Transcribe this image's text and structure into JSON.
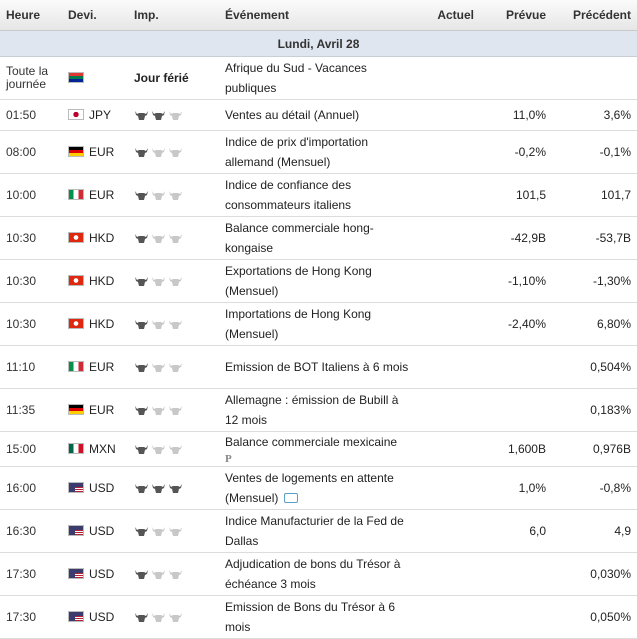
{
  "headers": {
    "time": "Heure",
    "currency": "Devi.",
    "impact": "Imp.",
    "event": "Événement",
    "actual": "Actuel",
    "forecast": "Prévue",
    "previous": "Précédent"
  },
  "day_label": "Lundi, Avril 28",
  "holiday": {
    "time": "Toute la journée",
    "currency_flag": "ZA",
    "impact_label": "Jour férié",
    "event": "Afrique du Sud - Vacances publiques"
  },
  "rows": [
    {
      "time": "01:50",
      "flag": "JP",
      "currency": "JPY",
      "impact": 2,
      "event": "Ventes au détail (Annuel)",
      "actual": "",
      "forecast": "11,0%",
      "previous": "3,6%"
    },
    {
      "time": "08:00",
      "flag": "DE",
      "currency": "EUR",
      "impact": 1,
      "event": "Indice de prix d'importation allemand (Mensuel)",
      "actual": "",
      "forecast": "-0,2%",
      "previous": "-0,1%"
    },
    {
      "time": "10:00",
      "flag": "IT",
      "currency": "EUR",
      "impact": 1,
      "event": "Indice de confiance des consommateurs italiens",
      "actual": "",
      "forecast": "101,5",
      "previous": "101,7"
    },
    {
      "time": "10:30",
      "flag": "HK",
      "currency": "HKD",
      "impact": 1,
      "event": "Balance commerciale hong-kongaise",
      "actual": "",
      "forecast": "-42,9B",
      "previous": "-53,7B"
    },
    {
      "time": "10:30",
      "flag": "HK",
      "currency": "HKD",
      "impact": 1,
      "event": "Exportations de Hong Kong (Mensuel)",
      "actual": "",
      "forecast": "-1,10%",
      "previous": "-1,30%"
    },
    {
      "time": "10:30",
      "flag": "HK",
      "currency": "HKD",
      "impact": 1,
      "event": "Importations de Hong Kong (Mensuel)",
      "actual": "",
      "forecast": "-2,40%",
      "previous": "6,80%"
    },
    {
      "time": "11:10",
      "flag": "IT",
      "currency": "EUR",
      "impact": 1,
      "event": "Emission de BOT Italiens à 6 mois",
      "actual": "",
      "forecast": "",
      "previous": "0,504%"
    },
    {
      "time": "11:35",
      "flag": "DE",
      "currency": "EUR",
      "impact": 1,
      "event": "Allemagne : émission de Bubill à 12 mois",
      "actual": "",
      "forecast": "",
      "previous": "0,183%"
    },
    {
      "time": "15:00",
      "flag": "MX",
      "currency": "MXN",
      "impact": 1,
      "event": "Balance commerciale mexicaine",
      "badge": "P",
      "actual": "",
      "forecast": "1,600B",
      "previous": "0,976B"
    },
    {
      "time": "16:00",
      "flag": "US",
      "currency": "USD",
      "impact": 3,
      "event": "Ventes de logements en attente (Mensuel)",
      "speech": true,
      "actual": "",
      "forecast": "1,0%",
      "previous": "-0,8%"
    },
    {
      "time": "16:30",
      "flag": "US",
      "currency": "USD",
      "impact": 1,
      "event": "Indice Manufacturier de la Fed de Dallas",
      "actual": "",
      "forecast": "6,0",
      "previous": "4,9"
    },
    {
      "time": "17:30",
      "flag": "US",
      "currency": "USD",
      "impact": 1,
      "event": "Adjudication de bons du Trésor à échéance 3 mois",
      "actual": "",
      "forecast": "",
      "previous": "0,030%"
    },
    {
      "time": "17:30",
      "flag": "US",
      "currency": "USD",
      "impact": 1,
      "event": "Emission de Bons du Trésor à 6 mois",
      "actual": "",
      "forecast": "",
      "previous": "0,050%"
    }
  ],
  "colors": {
    "bull_on": "#555555",
    "bull_off": "#c8c8c8",
    "day_bg": "#dfe6ef"
  }
}
